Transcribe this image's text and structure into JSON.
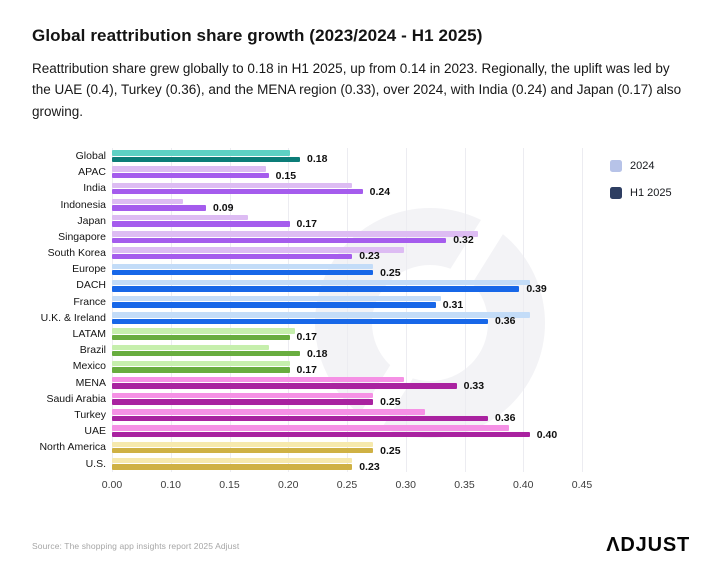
{
  "header": {
    "title": "Global reattribution share growth (2023/2024 - H1 2025)",
    "subtitle": "Reattribution share grew globally to 0.18 in H1 2025, up from 0.14 in 2023. Regionally, the uplift was led by the UAE (0.4), Turkey (0.36), and the MENA region (0.33), over 2024, with India (0.24) and Japan (0.17) also growing."
  },
  "legend": {
    "items": [
      {
        "label": "2024",
        "swatch": "#b7c3e8"
      },
      {
        "label": "H1 2025",
        "swatch": "#2e3e62"
      }
    ]
  },
  "chart_data": {
    "type": "bar",
    "orientation": "horizontal",
    "xlim": [
      0,
      0.45
    ],
    "x_tick_labels": [
      "0.00",
      "0.10",
      "0.15",
      "0.20",
      "0.25",
      "0.30",
      "0.35",
      "0.40",
      "0.45"
    ],
    "grid": true,
    "legend_position": "top-right",
    "series_names": [
      "2024",
      "H1 2025"
    ],
    "value_labels_on_series": "H1 2025",
    "palettes": {
      "teal": {
        "light": "#5ed1c4",
        "dark": "#0c7d78"
      },
      "purple": {
        "light": "#ddbcf3",
        "dark": "#a55ced"
      },
      "blue": {
        "light": "#c3dcf8",
        "dark": "#1767e8"
      },
      "green": {
        "light": "#c6efad",
        "dark": "#68ad3f"
      },
      "magenta": {
        "light": "#f591e5",
        "dark": "#a922a0"
      },
      "gold": {
        "light": "#f6e9ad",
        "dark": "#cfb144"
      }
    },
    "rows": [
      {
        "label": "Global",
        "group": "teal",
        "v2024": 0.17,
        "h1_2025": 0.18,
        "value_label": "0.18"
      },
      {
        "label": "APAC",
        "group": "purple",
        "v2024": 0.147,
        "h1_2025": 0.15,
        "value_label": "0.15"
      },
      {
        "label": "India",
        "group": "purple",
        "v2024": 0.23,
        "h1_2025": 0.24,
        "value_label": "0.24"
      },
      {
        "label": "Indonesia",
        "group": "purple",
        "v2024": 0.068,
        "h1_2025": 0.09,
        "value_label": "0.09"
      },
      {
        "label": "Japan",
        "group": "purple",
        "v2024": 0.13,
        "h1_2025": 0.17,
        "value_label": "0.17"
      },
      {
        "label": "Singapore",
        "group": "purple",
        "v2024": 0.35,
        "h1_2025": 0.32,
        "value_label": "0.32"
      },
      {
        "label": "South Korea",
        "group": "purple",
        "v2024": 0.28,
        "h1_2025": 0.23,
        "value_label": "0.23"
      },
      {
        "label": "Europe",
        "group": "blue",
        "v2024": 0.25,
        "h1_2025": 0.25,
        "value_label": "0.25"
      },
      {
        "label": "DACH",
        "group": "blue",
        "v2024": 0.4,
        "h1_2025": 0.39,
        "value_label": "0.39"
      },
      {
        "label": "France",
        "group": "blue",
        "v2024": 0.315,
        "h1_2025": 0.31,
        "value_label": "0.31"
      },
      {
        "label": "U.K. & Ireland",
        "group": "blue",
        "v2024": 0.4,
        "h1_2025": 0.36,
        "value_label": "0.36"
      },
      {
        "label": "LATAM",
        "group": "green",
        "v2024": 0.175,
        "h1_2025": 0.17,
        "value_label": "0.17"
      },
      {
        "label": "Brazil",
        "group": "green",
        "v2024": 0.15,
        "h1_2025": 0.18,
        "value_label": "0.18"
      },
      {
        "label": "Mexico",
        "group": "green",
        "v2024": 0.17,
        "h1_2025": 0.17,
        "value_label": "0.17"
      },
      {
        "label": "MENA",
        "group": "magenta",
        "v2024": 0.28,
        "h1_2025": 0.33,
        "value_label": "0.33"
      },
      {
        "label": "Saudi Arabia",
        "group": "magenta",
        "v2024": 0.25,
        "h1_2025": 0.25,
        "value_label": "0.25"
      },
      {
        "label": "Turkey",
        "group": "magenta",
        "v2024": 0.3,
        "h1_2025": 0.36,
        "value_label": "0.36"
      },
      {
        "label": "UAE",
        "group": "magenta",
        "v2024": 0.38,
        "h1_2025": 0.4,
        "value_label": "0.40"
      },
      {
        "label": "North America",
        "group": "gold",
        "v2024": 0.25,
        "h1_2025": 0.25,
        "value_label": "0.25"
      },
      {
        "label": "U.S.",
        "group": "gold",
        "v2024": 0.23,
        "h1_2025": 0.23,
        "value_label": "0.23"
      }
    ]
  },
  "footer": {
    "source": "Source: The shopping app insights report 2025 Adjust",
    "logo": "ΛDJUST"
  }
}
